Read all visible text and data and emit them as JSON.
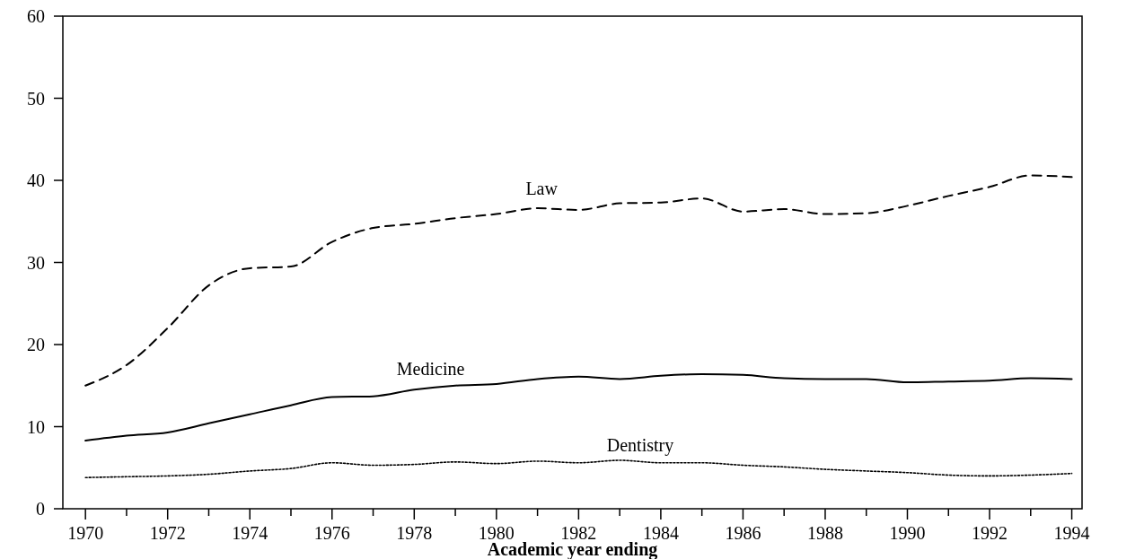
{
  "chart_data": {
    "type": "line",
    "xlabel": "Academic year ending",
    "x": [
      1970,
      1971,
      1972,
      1973,
      1974,
      1975,
      1976,
      1977,
      1978,
      1979,
      1980,
      1981,
      1982,
      1983,
      1984,
      1985,
      1986,
      1987,
      1988,
      1989,
      1990,
      1991,
      1992,
      1993,
      1994
    ],
    "xlim": [
      1969.45,
      1994.25
    ],
    "xticks": [
      1970,
      {
        "value": 1971,
        "label": null
      },
      1972,
      {
        "value": 1973,
        "label": null
      },
      1974,
      {
        "value": 1975,
        "label": null
      },
      1976,
      {
        "value": 1977,
        "label": null
      },
      1978,
      {
        "value": 1979,
        "label": null
      },
      1980,
      {
        "value": 1981,
        "label": null
      },
      1982,
      {
        "value": 1983,
        "label": null
      },
      1984,
      {
        "value": 1985,
        "label": null
      },
      1986,
      {
        "value": 1987,
        "label": null
      },
      1988,
      {
        "value": 1989,
        "label": null
      },
      1990,
      {
        "value": 1991,
        "label": null
      },
      1992,
      {
        "value": 1993,
        "label": null
      },
      1994
    ],
    "ylim": [
      0,
      60
    ],
    "yticks": [
      0,
      10,
      20,
      30,
      40,
      50,
      60
    ],
    "grid": false,
    "series": [
      {
        "name": "Law",
        "color": "#000000",
        "line_style": "dashed",
        "values": [
          15,
          17.5,
          22,
          27.2,
          29.3,
          29.5,
          32.5,
          34.2,
          34.7,
          35.4,
          35.9,
          36.6,
          36.4,
          37.2,
          37.3,
          37.8,
          36.2,
          36.5,
          35.9,
          36,
          36.9,
          38.1,
          39.2,
          40.6,
          40.4
        ]
      },
      {
        "name": "Medicine",
        "color": "#000000",
        "line_style": "solid",
        "values": [
          8.3,
          8.9,
          9.3,
          10.4,
          11.5,
          12.6,
          13.6,
          13.7,
          14.5,
          15,
          15.2,
          15.8,
          16.1,
          15.8,
          16.2,
          16.4,
          16.3,
          15.9,
          15.8,
          15.8,
          15.4,
          15.5,
          15.6,
          15.9,
          15.8
        ]
      },
      {
        "name": "Dentistry",
        "color": "#000000",
        "line_style": "dotted",
        "values": [
          3.8,
          3.9,
          4.0,
          4.2,
          4.6,
          4.9,
          5.6,
          5.3,
          5.4,
          5.7,
          5.5,
          5.8,
          5.6,
          5.9,
          5.6,
          5.6,
          5.3,
          5.1,
          4.8,
          4.6,
          4.4,
          4.1,
          4.0,
          4.1,
          4.3
        ]
      }
    ]
  }
}
